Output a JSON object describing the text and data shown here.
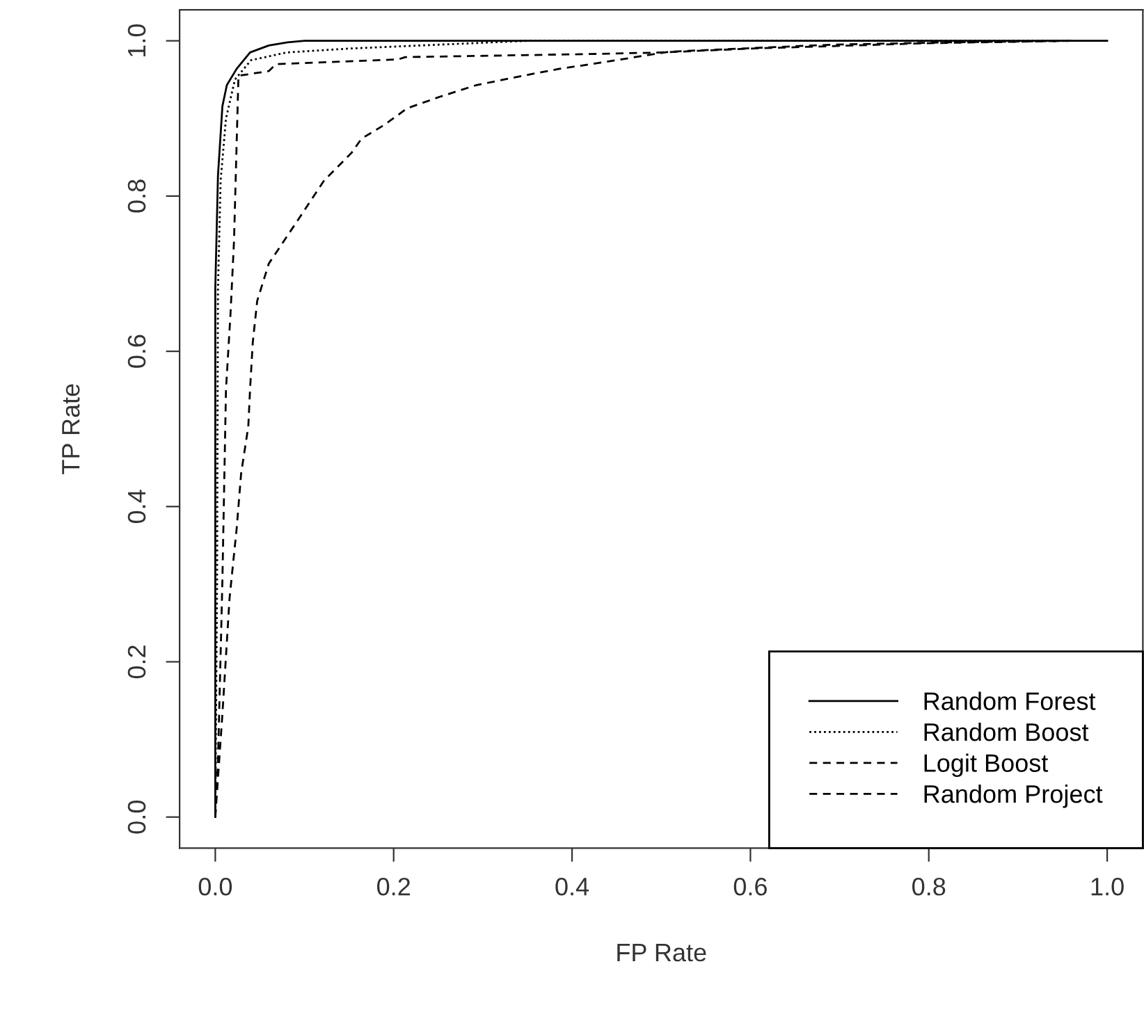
{
  "chart_data": {
    "type": "line",
    "xlabel": "FP Rate",
    "ylabel": "TP Rate",
    "xlim": [
      -0.04,
      1.04
    ],
    "ylim": [
      -0.04,
      1.04
    ],
    "xticks": [
      {
        "value": 0,
        "label": "0.0"
      },
      0.2,
      0.4,
      0.6,
      0.8,
      {
        "value": 1,
        "label": "1.0"
      }
    ],
    "yticks": [
      {
        "value": 0,
        "label": "0.0"
      },
      0.2,
      0.4,
      0.6,
      0.8,
      {
        "value": 1,
        "label": "1.0"
      }
    ],
    "grid": false,
    "legend": "bottom right",
    "marker": "none",
    "series": [
      {
        "name": "Random Forest",
        "color": "#000000",
        "line_style": "solid",
        "x": [
          0,
          0,
          0.003,
          0.008,
          0.013,
          0.024,
          0.039,
          0.06,
          0.081,
          0.1,
          1
        ],
        "values": [
          0,
          0.68,
          0.826,
          0.916,
          0.943,
          0.964,
          0.985,
          0.994,
          0.998,
          1.0,
          1.0
        ]
      },
      {
        "name": "Random Boost",
        "color": "#000000",
        "line_style": "dotted",
        "x": [
          0,
          0.002,
          0.003,
          0.006,
          0.012,
          0.022,
          0.04,
          0.08,
          0.15,
          0.25,
          0.35,
          0.95
        ],
        "values": [
          0,
          0.3,
          0.68,
          0.82,
          0.9,
          0.95,
          0.975,
          0.985,
          0.99,
          0.995,
          1.0,
          1.0
        ]
      },
      {
        "name": "Logit Boost",
        "color": "#000000",
        "line_style": "dashed",
        "x": [
          0,
          0.003,
          0.006,
          0.008,
          0.012,
          0.017,
          0.021,
          0.026,
          0.06,
          0.068,
          0.205,
          0.213,
          0.422,
          0.5,
          0.6,
          0.8,
          0.96
        ],
        "values": [
          0,
          0.072,
          0.21,
          0.306,
          0.551,
          0.647,
          0.742,
          0.955,
          0.961,
          0.97,
          0.976,
          0.979,
          0.983,
          0.985,
          0.99,
          0.997,
          1.0
        ]
      },
      {
        "name": "Random Project",
        "color": "#000000",
        "line_style": "dashed",
        "x": [
          0,
          0.008,
          0.016,
          0.024,
          0.029,
          0.037,
          0.039,
          0.042,
          0.047,
          0.06,
          0.081,
          0.122,
          0.153,
          0.164,
          0.19,
          0.215,
          0.252,
          0.293,
          0.345,
          0.386,
          0.422,
          0.509,
          0.69,
          0.82,
          0.96
        ],
        "values": [
          0,
          0.133,
          0.282,
          0.372,
          0.443,
          0.503,
          0.551,
          0.611,
          0.665,
          0.713,
          0.749,
          0.82,
          0.856,
          0.874,
          0.892,
          0.913,
          0.928,
          0.943,
          0.955,
          0.964,
          0.97,
          0.986,
          0.995,
          0.998,
          1.0
        ]
      }
    ]
  }
}
